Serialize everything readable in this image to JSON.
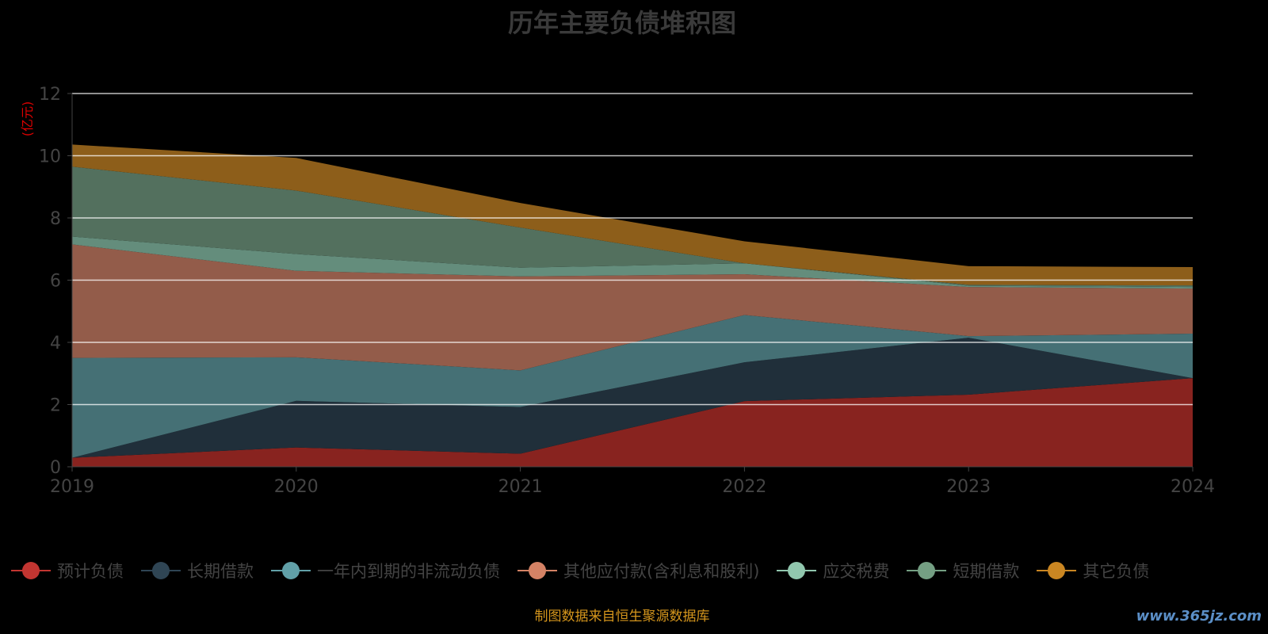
{
  "chart_data": {
    "type": "area",
    "stacked": true,
    "title": "历年主要负债堆积图",
    "ylabel": "(亿元)",
    "xlabel": "",
    "ylim": [
      0,
      12
    ],
    "yticks": [
      "0",
      "2",
      "4",
      "6",
      "8",
      "10",
      "12"
    ],
    "categories": [
      "2019",
      "2020",
      "2021",
      "2022",
      "2023",
      "2024"
    ],
    "grid": true,
    "legend_position": "bottom",
    "series": [
      {
        "name": "预计负债",
        "color": "#c23531",
        "fill": "#88231f",
        "values": [
          0.29,
          0.62,
          0.42,
          2.11,
          2.32,
          2.85
        ]
      },
      {
        "name": "长期借款",
        "color": "#2f4554",
        "fill": "#202f3a",
        "values": [
          0,
          1.5,
          1.5,
          1.25,
          1.83,
          0
        ]
      },
      {
        "name": "一年内到期的非流动负债",
        "color": "#61a0a8",
        "fill": "#457075",
        "values": [
          3.21,
          1.4,
          1.18,
          1.52,
          0.05,
          1.43
        ]
      },
      {
        "name": "其他应付款(含利息和股利)",
        "color": "#d48265",
        "fill": "#935c4a",
        "values": [
          3.65,
          2.78,
          3.02,
          1.31,
          1.58,
          1.45
        ]
      },
      {
        "name": "应交税费",
        "color": "#91c7ae",
        "fill": "#648d7c",
        "values": [
          0.25,
          0.54,
          0.28,
          0.35,
          0.04,
          0.05
        ]
      },
      {
        "name": "短期借款",
        "color": "#749f83",
        "fill": "#53705e",
        "values": [
          2.25,
          2.04,
          1.29,
          0,
          0.03,
          0.05
        ]
      },
      {
        "name": "其它负债",
        "color": "#ca8622",
        "fill": "#8d5e1a",
        "values": [
          0.71,
          1.05,
          0.79,
          0.71,
          0.6,
          0.59
        ]
      }
    ]
  },
  "footer": {
    "source": "制图数据来自恒生聚源数据库",
    "watermark": "www.365jz.com"
  }
}
